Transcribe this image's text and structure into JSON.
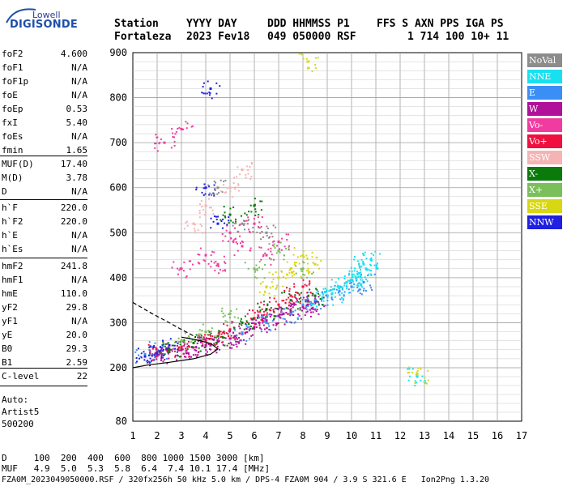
{
  "logo": {
    "top": "Lowell",
    "main": "DIGISONDE"
  },
  "header": {
    "line1": [
      "Station",
      "YYYY DAY",
      "DDD HHMMSS P1",
      "FFS S AXN PPS IGA PS"
    ],
    "line2": [
      "Fortaleza",
      "2023 Fev18",
      "049 050000 RSF",
      "1 714 100 10+ 11"
    ]
  },
  "params_group1": [
    {
      "name": "foF2",
      "value": "4.600"
    },
    {
      "name": "foF1",
      "value": "N/A"
    },
    {
      "name": "foF1p",
      "value": "N/A"
    },
    {
      "name": "foE",
      "value": "N/A"
    },
    {
      "name": "foEp",
      "value": "0.53"
    },
    {
      "name": "fxI",
      "value": "5.40"
    },
    {
      "name": "foEs",
      "value": "N/A"
    },
    {
      "name": "fmin",
      "value": "1.65"
    }
  ],
  "params_group2": [
    {
      "name": "MUF(D)",
      "value": "17.40"
    },
    {
      "name": "M(D)",
      "value": "3.78"
    },
    {
      "name": "D",
      "value": "N/A"
    }
  ],
  "params_group3": [
    {
      "name": "h`F",
      "value": "220.0"
    },
    {
      "name": "h`F2",
      "value": "220.0"
    },
    {
      "name": "h`E",
      "value": "N/A"
    },
    {
      "name": "h`Es",
      "value": "N/A"
    }
  ],
  "params_group4": [
    {
      "name": "hmF2",
      "value": "241.8"
    },
    {
      "name": "hmF1",
      "value": "N/A"
    },
    {
      "name": "hmE",
      "value": "110.0"
    },
    {
      "name": "yF2",
      "value": "29.8"
    },
    {
      "name": "yF1",
      "value": "N/A"
    },
    {
      "name": "yE",
      "value": "20.0"
    },
    {
      "name": "B0",
      "value": "29.3"
    },
    {
      "name": "B1",
      "value": "2.59"
    }
  ],
  "params_group5": [
    {
      "name": "C-level",
      "value": "22"
    }
  ],
  "autoscale": {
    "label": "Auto:",
    "program": "Artist5",
    "version": "500200"
  },
  "legend": [
    {
      "label": "NoVal",
      "color": "#8c8c8c",
      "text": "#ffffff"
    },
    {
      "label": "NNE",
      "color": "#19e0f0",
      "text": "#ffffff"
    },
    {
      "label": "E",
      "color": "#3b8ef5",
      "text": "#ffffff"
    },
    {
      "label": "W",
      "color": "#b0109a",
      "text": "#ffffff"
    },
    {
      "label": "Vo-",
      "color": "#f03ca0",
      "text": "#ffffff"
    },
    {
      "label": "Vo+",
      "color": "#f01040",
      "text": "#ffffff"
    },
    {
      "label": "SSW",
      "color": "#f5b4b4",
      "text": "#ffffff"
    },
    {
      "label": "X-",
      "color": "#0a7a0a",
      "text": "#ffffff"
    },
    {
      "label": "X+",
      "color": "#7abf5a",
      "text": "#ffffff"
    },
    {
      "label": "SSE",
      "color": "#d7d714",
      "text": "#ffffff"
    },
    {
      "label": "NNW",
      "color": "#2020e0",
      "text": "#ffffff"
    }
  ],
  "bottom": {
    "line_d": "D     100  200  400  600  800 1000 1500 3000 [km]",
    "line_muf": "MUF   4.9  5.0  5.3  5.8  6.4  7.4 10.1 17.4 [MHz]",
    "footer": "FZA0M_2023049050000.RSF / 320fx256h 50 kHz 5.0 km / DPS-4 FZA0M 904 / 3.9 S 321.6 E   Ion2Png 1.3.20"
  },
  "colors": {
    "grid": "#a0a0a0",
    "axis": "#000000"
  },
  "chart_data": {
    "type": "scatter",
    "title": "",
    "xlabel": "",
    "ylabel": "",
    "xlim": [
      1,
      17
    ],
    "ylim": [
      80,
      900
    ],
    "xticks": [
      1,
      2,
      3,
      4,
      5,
      6,
      7,
      8,
      9,
      10,
      11,
      12,
      13,
      14,
      15,
      16,
      17
    ],
    "yticks": [
      80,
      200,
      300,
      400,
      500,
      600,
      700,
      800,
      900
    ],
    "grid": true,
    "legend_position": "right",
    "series": [
      {
        "name": "W",
        "color": "#b0109a",
        "points": [
          [
            2.0,
            230
          ],
          [
            2.5,
            235
          ],
          [
            3.0,
            240
          ],
          [
            3.5,
            245
          ],
          [
            4.0,
            250
          ],
          [
            4.5,
            258
          ],
          [
            5.0,
            265
          ],
          [
            5.5,
            275
          ],
          [
            6.0,
            290
          ],
          [
            6.5,
            305
          ],
          [
            7.0,
            315
          ],
          [
            7.5,
            325
          ],
          [
            8.0,
            335
          ],
          [
            8.5,
            345
          ],
          [
            2.2,
            230
          ],
          [
            3.2,
            238
          ],
          [
            4.2,
            250
          ],
          [
            5.2,
            270
          ],
          [
            6.2,
            300
          ],
          [
            7.2,
            320
          ],
          [
            8.2,
            340
          ]
        ]
      },
      {
        "name": "E",
        "color": "#3b8ef5",
        "points": [
          [
            5.5,
            278
          ],
          [
            6.5,
            300
          ],
          [
            7.5,
            320
          ],
          [
            8.0,
            340
          ],
          [
            8.5,
            350
          ],
          [
            9.0,
            360
          ],
          [
            9.5,
            370
          ],
          [
            10.0,
            380
          ],
          [
            10.5,
            390
          ],
          [
            1.5,
            230
          ],
          [
            2.0,
            240
          ]
        ]
      },
      {
        "name": "NNE",
        "color": "#19e0f0",
        "points": [
          [
            9.5,
            380
          ],
          [
            10.0,
            395
          ],
          [
            10.3,
            410
          ],
          [
            10.6,
            420
          ],
          [
            10.8,
            440
          ],
          [
            9.8,
            390
          ],
          [
            10.2,
            400
          ],
          [
            10.5,
            430
          ],
          [
            9.2,
            365
          ],
          [
            8.8,
            355
          ],
          [
            12.7,
            180
          ]
        ]
      },
      {
        "name": "Vo+",
        "color": "#f01040",
        "points": [
          [
            2.0,
            235
          ],
          [
            3.0,
            245
          ],
          [
            4.0,
            260
          ],
          [
            4.5,
            270
          ],
          [
            5.0,
            285
          ],
          [
            6.0,
            310
          ],
          [
            7.0,
            340
          ],
          [
            7.5,
            360
          ],
          [
            8.0,
            380
          ],
          [
            6.5,
            330
          ]
        ]
      },
      {
        "name": "Vo-",
        "color": "#f03ca0",
        "points": [
          [
            3.0,
            420
          ],
          [
            4.0,
            450
          ],
          [
            5.0,
            500
          ],
          [
            6.0,
            520
          ],
          [
            7.0,
            480
          ],
          [
            6.5,
            450
          ],
          [
            5.5,
            470
          ],
          [
            4.5,
            430
          ],
          [
            2.3,
            700
          ],
          [
            3.0,
            730
          ]
        ]
      },
      {
        "name": "X-",
        "color": "#0a7a0a",
        "points": [
          [
            2.5,
            240
          ],
          [
            3.5,
            255
          ],
          [
            4.5,
            270
          ],
          [
            5.5,
            300
          ],
          [
            6.5,
            330
          ],
          [
            7.5,
            350
          ],
          [
            8.5,
            360
          ],
          [
            5.0,
            540
          ],
          [
            6.0,
            560
          ]
        ]
      },
      {
        "name": "X+",
        "color": "#7abf5a",
        "points": [
          [
            3.0,
            260
          ],
          [
            4.0,
            280
          ],
          [
            5.0,
            320
          ],
          [
            6.0,
            420
          ],
          [
            7.0,
            460
          ],
          [
            8.0,
            420
          ]
        ]
      },
      {
        "name": "SSE",
        "color": "#d7d714",
        "points": [
          [
            6.5,
            380
          ],
          [
            7.0,
            400
          ],
          [
            7.5,
            420
          ],
          [
            8.0,
            450
          ],
          [
            8.5,
            430
          ],
          [
            8.2,
            880
          ],
          [
            12.7,
            185
          ]
        ]
      },
      {
        "name": "NNW",
        "color": "#2020e0",
        "points": [
          [
            1.5,
            225
          ],
          [
            2.0,
            232
          ],
          [
            4.0,
            600
          ],
          [
            4.2,
            820
          ],
          [
            4.5,
            520
          ],
          [
            2.5,
            250
          ]
        ]
      },
      {
        "name": "SSW",
        "color": "#f5b4b4",
        "points": [
          [
            4.0,
            560
          ],
          [
            5.0,
            600
          ],
          [
            5.5,
            640
          ],
          [
            3.5,
            520
          ]
        ]
      },
      {
        "name": "NoVal",
        "color": "#8c8c8c",
        "points": [
          [
            4.5,
            600
          ],
          [
            5.5,
            520
          ],
          [
            6.5,
            500
          ]
        ]
      }
    ],
    "profile_solid": [
      [
        1.0,
        200
      ],
      [
        1.6,
        206
      ],
      [
        2.5,
        212
      ],
      [
        3.5,
        220
      ],
      [
        4.2,
        230
      ],
      [
        4.5,
        242
      ],
      [
        4.2,
        254
      ],
      [
        3.6,
        262
      ],
      [
        3.0,
        268
      ]
    ],
    "profile_dashed": [
      [
        1.0,
        345
      ],
      [
        1.8,
        320
      ],
      [
        2.5,
        300
      ],
      [
        3.0,
        285
      ],
      [
        3.6,
        268
      ]
    ]
  }
}
